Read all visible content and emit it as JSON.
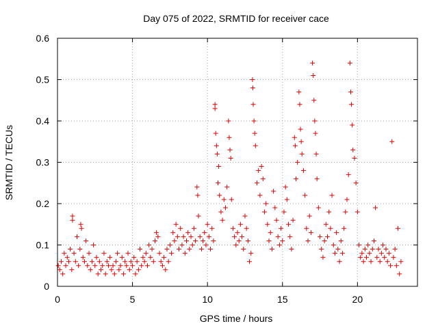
{
  "chart_data": {
    "type": "scatter",
    "title": "Day 075 of 2022, SRMTID for receiver cace",
    "xlabel": "GPS time / hours",
    "ylabel": "SRMTID / TECUs",
    "xlim": [
      0,
      24
    ],
    "ylim": [
      0,
      0.6
    ],
    "x_ticks": [
      0,
      5,
      10,
      15,
      20
    ],
    "y_ticks": [
      0,
      0.1,
      0.2,
      0.3,
      0.4,
      0.5,
      0.6
    ],
    "x_tick_labels": [
      "0",
      "5",
      "10",
      "15",
      "20"
    ],
    "y_tick_labels": [
      "0",
      "0.1",
      "0.2",
      "0.3",
      "0.4",
      "0.5",
      "0.6"
    ],
    "grid": true,
    "marker": "plus",
    "series": [
      {
        "name": "SRMTID",
        "color": "#e00000",
        "points": [
          [
            0.05,
            0.05
          ],
          [
            0.15,
            0.04
          ],
          [
            0.25,
            0.06
          ],
          [
            0.35,
            0.03
          ],
          [
            0.45,
            0.08
          ],
          [
            0.55,
            0.05
          ],
          [
            0.65,
            0.07
          ],
          [
            0.75,
            0.06
          ],
          [
            0.85,
            0.09
          ],
          [
            0.95,
            0.04
          ],
          [
            1.0,
            0.17
          ],
          [
            1.0,
            0.16
          ],
          [
            1.1,
            0.08
          ],
          [
            1.2,
            0.06
          ],
          [
            1.3,
            0.12
          ],
          [
            1.4,
            0.05
          ],
          [
            1.5,
            0.09
          ],
          [
            1.55,
            0.15
          ],
          [
            1.6,
            0.14
          ],
          [
            1.7,
            0.07
          ],
          [
            1.8,
            0.06
          ],
          [
            1.9,
            0.11
          ],
          [
            2.0,
            0.05
          ],
          [
            2.1,
            0.08
          ],
          [
            2.2,
            0.04
          ],
          [
            2.3,
            0.06
          ],
          [
            2.4,
            0.1
          ],
          [
            2.5,
            0.05
          ],
          [
            2.6,
            0.07
          ],
          [
            2.7,
            0.03
          ],
          [
            2.8,
            0.06
          ],
          [
            2.9,
            0.04
          ],
          [
            3.0,
            0.05
          ],
          [
            3.1,
            0.08
          ],
          [
            3.2,
            0.03
          ],
          [
            3.3,
            0.06
          ],
          [
            3.4,
            0.05
          ],
          [
            3.5,
            0.07
          ],
          [
            3.6,
            0.04
          ],
          [
            3.7,
            0.05
          ],
          [
            3.8,
            0.03
          ],
          [
            3.9,
            0.06
          ],
          [
            4.0,
            0.08
          ],
          [
            4.1,
            0.04
          ],
          [
            4.2,
            0.05
          ],
          [
            4.3,
            0.07
          ],
          [
            4.4,
            0.03
          ],
          [
            4.5,
            0.06
          ],
          [
            4.6,
            0.05
          ],
          [
            4.7,
            0.08
          ],
          [
            4.8,
            0.04
          ],
          [
            4.9,
            0.06
          ],
          [
            5.0,
            0.05
          ],
          [
            5.1,
            0.07
          ],
          [
            5.2,
            0.03
          ],
          [
            5.3,
            0.06
          ],
          [
            5.4,
            0.04
          ],
          [
            5.5,
            0.09
          ],
          [
            5.6,
            0.05
          ],
          [
            5.7,
            0.07
          ],
          [
            5.8,
            0.06
          ],
          [
            5.9,
            0.08
          ],
          [
            6.0,
            0.05
          ],
          [
            6.1,
            0.1
          ],
          [
            6.2,
            0.07
          ],
          [
            6.3,
            0.09
          ],
          [
            6.4,
            0.06
          ],
          [
            6.5,
            0.11
          ],
          [
            6.6,
            0.13
          ],
          [
            6.7,
            0.12
          ],
          [
            6.8,
            0.08
          ],
          [
            6.9,
            0.06
          ],
          [
            7.0,
            0.05
          ],
          [
            7.1,
            0.07
          ],
          [
            7.2,
            0.04
          ],
          [
            7.3,
            0.09
          ],
          [
            7.4,
            0.06
          ],
          [
            7.5,
            0.1
          ],
          [
            7.6,
            0.08
          ],
          [
            7.7,
            0.13
          ],
          [
            7.8,
            0.11
          ],
          [
            7.9,
            0.15
          ],
          [
            8.0,
            0.12
          ],
          [
            8.1,
            0.09
          ],
          [
            8.2,
            0.14
          ],
          [
            8.3,
            0.1
          ],
          [
            8.4,
            0.12
          ],
          [
            8.5,
            0.08
          ],
          [
            8.6,
            0.11
          ],
          [
            8.7,
            0.13
          ],
          [
            8.8,
            0.09
          ],
          [
            8.9,
            0.12
          ],
          [
            9.0,
            0.1
          ],
          [
            9.1,
            0.14
          ],
          [
            9.2,
            0.11
          ],
          [
            9.3,
            0.24
          ],
          [
            9.35,
            0.22
          ],
          [
            9.4,
            0.17
          ],
          [
            9.5,
            0.12
          ],
          [
            9.6,
            0.09
          ],
          [
            9.7,
            0.11
          ],
          [
            9.8,
            0.13
          ],
          [
            9.9,
            0.1
          ],
          [
            10.0,
            0.15
          ],
          [
            10.1,
            0.12
          ],
          [
            10.2,
            0.09
          ],
          [
            10.3,
            0.14
          ],
          [
            10.4,
            0.11
          ],
          [
            10.5,
            0.44
          ],
          [
            10.5,
            0.43
          ],
          [
            10.55,
            0.37
          ],
          [
            10.6,
            0.34
          ],
          [
            10.65,
            0.32
          ],
          [
            10.7,
            0.25
          ],
          [
            10.75,
            0.29
          ],
          [
            10.8,
            0.22
          ],
          [
            10.9,
            0.18
          ],
          [
            11.0,
            0.16
          ],
          [
            11.1,
            0.21
          ],
          [
            11.2,
            0.19
          ],
          [
            11.3,
            0.24
          ],
          [
            11.4,
            0.4
          ],
          [
            11.45,
            0.36
          ],
          [
            11.5,
            0.33
          ],
          [
            11.55,
            0.31
          ],
          [
            11.6,
            0.21
          ],
          [
            11.7,
            0.14
          ],
          [
            11.8,
            0.12
          ],
          [
            11.9,
            0.1
          ],
          [
            12.0,
            0.13
          ],
          [
            12.1,
            0.11
          ],
          [
            12.2,
            0.15
          ],
          [
            12.3,
            0.12
          ],
          [
            12.4,
            0.09
          ],
          [
            12.5,
            0.17
          ],
          [
            12.6,
            0.14
          ],
          [
            12.7,
            0.11
          ],
          [
            12.8,
            0.06
          ],
          [
            12.9,
            0.08
          ],
          [
            13.0,
            0.5
          ],
          [
            13.02,
            0.48
          ],
          [
            13.05,
            0.44
          ],
          [
            13.1,
            0.4
          ],
          [
            13.15,
            0.37
          ],
          [
            13.2,
            0.34
          ],
          [
            13.3,
            0.25
          ],
          [
            13.4,
            0.28
          ],
          [
            13.5,
            0.22
          ],
          [
            13.6,
            0.29
          ],
          [
            13.7,
            0.26
          ],
          [
            13.8,
            0.18
          ],
          [
            13.9,
            0.2
          ],
          [
            14.0,
            0.15
          ],
          [
            14.1,
            0.11
          ],
          [
            14.2,
            0.13
          ],
          [
            14.3,
            0.09
          ],
          [
            14.4,
            0.23
          ],
          [
            14.5,
            0.19
          ],
          [
            14.6,
            0.16
          ],
          [
            14.7,
            0.12
          ],
          [
            14.8,
            0.1
          ],
          [
            14.9,
            0.14
          ],
          [
            15.0,
            0.11
          ],
          [
            15.1,
            0.18
          ],
          [
            15.2,
            0.24
          ],
          [
            15.3,
            0.21
          ],
          [
            15.4,
            0.15
          ],
          [
            15.5,
            0.12
          ],
          [
            15.6,
            0.09
          ],
          [
            15.7,
            0.16
          ],
          [
            15.8,
            0.36
          ],
          [
            15.85,
            0.34
          ],
          [
            15.9,
            0.26
          ],
          [
            16.0,
            0.3
          ],
          [
            16.1,
            0.47
          ],
          [
            16.15,
            0.44
          ],
          [
            16.2,
            0.38
          ],
          [
            16.25,
            0.35
          ],
          [
            16.3,
            0.32
          ],
          [
            16.4,
            0.28
          ],
          [
            16.5,
            0.22
          ],
          [
            16.6,
            0.14
          ],
          [
            16.7,
            0.11
          ],
          [
            16.8,
            0.17
          ],
          [
            16.9,
            0.13
          ],
          [
            17.0,
            0.54
          ],
          [
            17.05,
            0.51
          ],
          [
            17.1,
            0.45
          ],
          [
            17.15,
            0.4
          ],
          [
            17.2,
            0.37
          ],
          [
            17.25,
            0.32
          ],
          [
            17.3,
            0.26
          ],
          [
            17.4,
            0.19
          ],
          [
            17.5,
            0.12
          ],
          [
            17.6,
            0.09
          ],
          [
            17.7,
            0.07
          ],
          [
            17.8,
            0.11
          ],
          [
            17.9,
            0.15
          ],
          [
            18.0,
            0.12
          ],
          [
            18.1,
            0.18
          ],
          [
            18.2,
            0.14
          ],
          [
            18.3,
            0.22
          ],
          [
            18.4,
            0.1
          ],
          [
            18.5,
            0.08
          ],
          [
            18.6,
            0.13
          ],
          [
            18.7,
            0.09
          ],
          [
            18.8,
            0.06
          ],
          [
            18.9,
            0.11
          ],
          [
            19.0,
            0.08
          ],
          [
            19.1,
            0.14
          ],
          [
            19.2,
            0.18
          ],
          [
            19.3,
            0.21
          ],
          [
            19.4,
            0.27
          ],
          [
            19.5,
            0.54
          ],
          [
            19.55,
            0.47
          ],
          [
            19.6,
            0.44
          ],
          [
            19.65,
            0.39
          ],
          [
            19.7,
            0.33
          ],
          [
            19.8,
            0.31
          ],
          [
            19.9,
            0.25
          ],
          [
            20.0,
            0.18
          ],
          [
            20.1,
            0.1
          ],
          [
            20.2,
            0.07
          ],
          [
            20.3,
            0.08
          ],
          [
            20.4,
            0.06
          ],
          [
            20.5,
            0.09
          ],
          [
            20.6,
            0.07
          ],
          [
            20.7,
            0.1
          ],
          [
            20.8,
            0.08
          ],
          [
            20.9,
            0.06
          ],
          [
            21.0,
            0.09
          ],
          [
            21.1,
            0.11
          ],
          [
            21.2,
            0.19
          ],
          [
            21.3,
            0.07
          ],
          [
            21.4,
            0.09
          ],
          [
            21.5,
            0.06
          ],
          [
            21.6,
            0.08
          ],
          [
            21.7,
            0.1
          ],
          [
            21.8,
            0.07
          ],
          [
            21.9,
            0.09
          ],
          [
            22.0,
            0.06
          ],
          [
            22.1,
            0.08
          ],
          [
            22.2,
            0.05
          ],
          [
            22.3,
            0.35
          ],
          [
            22.4,
            0.07
          ],
          [
            22.5,
            0.09
          ],
          [
            22.6,
            0.05
          ],
          [
            22.7,
            0.14
          ],
          [
            22.8,
            0.03
          ],
          [
            22.9,
            0.06
          ]
        ]
      }
    ]
  }
}
